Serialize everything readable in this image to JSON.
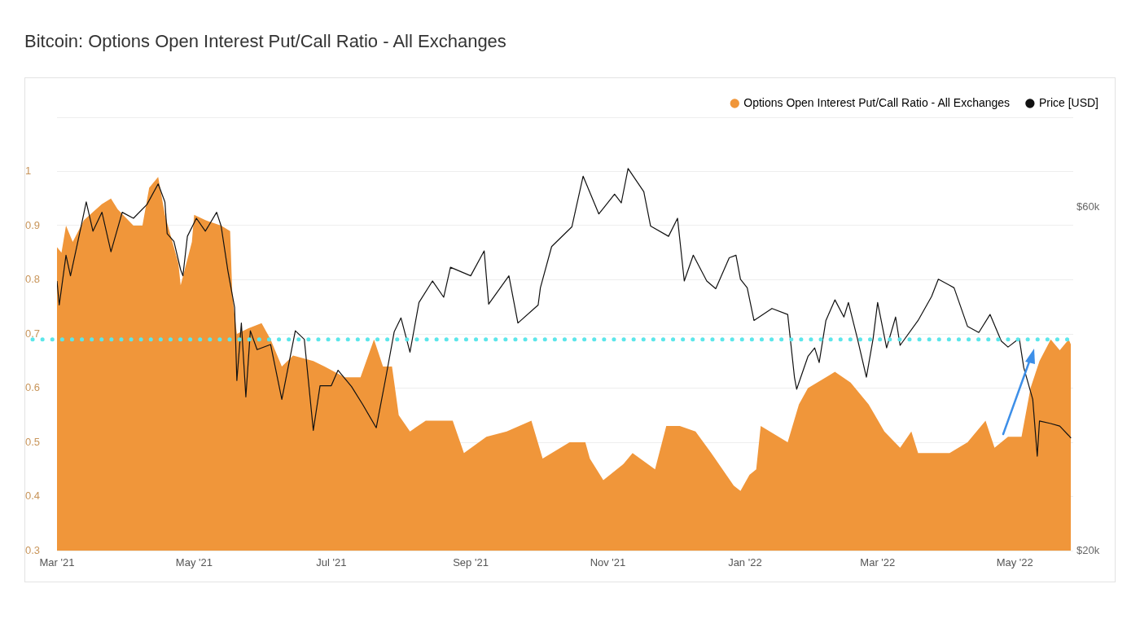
{
  "chart_data": {
    "type": "area",
    "title": "Bitcoin: Options Open Interest Put/Call Ratio - All Exchanges",
    "xlim": [
      "2021-03-01",
      "2022-05-27"
    ],
    "xticks": [
      {
        "value": "2021-03-01",
        "label": "Mar '21"
      },
      {
        "value": "2021-05-01",
        "label": "May '21"
      },
      {
        "value": "2021-07-01",
        "label": "Jul '21"
      },
      {
        "value": "2021-09-01",
        "label": "Sep '21"
      },
      {
        "value": "2021-11-01",
        "label": "Nov '21"
      },
      {
        "value": "2022-01-01",
        "label": "Jan '22"
      },
      {
        "value": "2022-03-01",
        "label": "Mar '22"
      },
      {
        "value": "2022-05-01",
        "label": "May '22"
      }
    ],
    "ylim": [
      0.3,
      1.1
    ],
    "yticks": [
      0.3,
      0.4,
      0.5,
      0.6,
      0.7,
      0.8,
      0.9,
      1,
      {
        "value": 1.1,
        "label": null
      }
    ],
    "y2lim": [
      20000,
      70460
    ],
    "y2ticks": [
      {
        "value": 20000,
        "label": "$20k"
      },
      {
        "value": 60000,
        "label": "$60k"
      }
    ],
    "grid": "y",
    "legend": "top right",
    "ref_lines": [
      {
        "axis": "y",
        "value": 0.69,
        "color": "#5ce6ea",
        "line_style": "dotted"
      }
    ],
    "series": [
      {
        "name": "Options Open Interest Put/Call Ratio - All Exchanges",
        "type": "area",
        "color": "#f0963a",
        "x": [
          "2021-03-01",
          "2021-03-03",
          "2021-03-05",
          "2021-03-08",
          "2021-03-13",
          "2021-03-21",
          "2021-03-25",
          "2021-03-28",
          "2021-04-04",
          "2021-04-08",
          "2021-04-11",
          "2021-04-15",
          "2021-04-18",
          "2021-04-20",
          "2021-04-24",
          "2021-04-25",
          "2021-04-30",
          "2021-05-01",
          "2021-05-06",
          "2021-05-13",
          "2021-05-17",
          "2021-05-18",
          "2021-05-20",
          "2021-05-25",
          "2021-05-31",
          "2021-06-04",
          "2021-06-09",
          "2021-06-14",
          "2021-06-23",
          "2021-06-28",
          "2021-07-07",
          "2021-07-14",
          "2021-07-20",
          "2021-07-24",
          "2021-07-28",
          "2021-07-29",
          "2021-07-31",
          "2021-08-05",
          "2021-08-12",
          "2021-08-24",
          "2021-08-29",
          "2021-09-08",
          "2021-09-17",
          "2021-09-28",
          "2021-10-03",
          "2021-10-15",
          "2021-10-22",
          "2021-10-24",
          "2021-10-30",
          "2021-11-08",
          "2021-11-12",
          "2021-11-22",
          "2021-11-27",
          "2021-12-03",
          "2021-12-10",
          "2021-12-17",
          "2021-12-27",
          "2021-12-30",
          "2022-01-03",
          "2022-01-06",
          "2022-01-08",
          "2022-01-20",
          "2022-01-25",
          "2022-01-29",
          "2022-02-06",
          "2022-02-10",
          "2022-02-17",
          "2022-02-25",
          "2022-03-04",
          "2022-03-11",
          "2022-03-16",
          "2022-03-19",
          "2022-04-02",
          "2022-04-10",
          "2022-04-18",
          "2022-04-22",
          "2022-04-28",
          "2022-05-04",
          "2022-05-08",
          "2022-05-12",
          "2022-05-17",
          "2022-05-21",
          "2022-05-25",
          "2022-05-26"
        ],
        "values": [
          0.86,
          0.85,
          0.9,
          0.87,
          0.91,
          0.94,
          0.95,
          0.93,
          0.9,
          0.9,
          0.97,
          0.99,
          0.92,
          0.89,
          0.83,
          0.79,
          0.87,
          0.92,
          0.91,
          0.9,
          0.89,
          0.77,
          0.7,
          0.71,
          0.72,
          0.69,
          0.64,
          0.66,
          0.65,
          0.64,
          0.62,
          0.62,
          0.69,
          0.64,
          0.64,
          0.61,
          0.55,
          0.52,
          0.54,
          0.54,
          0.48,
          0.51,
          0.52,
          0.54,
          0.47,
          0.5,
          0.5,
          0.47,
          0.43,
          0.46,
          0.48,
          0.45,
          0.53,
          0.53,
          0.52,
          0.48,
          0.42,
          0.41,
          0.44,
          0.45,
          0.53,
          0.5,
          0.57,
          0.6,
          0.62,
          0.63,
          0.61,
          0.57,
          0.52,
          0.49,
          0.52,
          0.48,
          0.48,
          0.5,
          0.54,
          0.49,
          0.51,
          0.51,
          0.6,
          0.65,
          0.69,
          0.67,
          0.69,
          0.68
        ]
      },
      {
        "name": "Price [USD]",
        "type": "line",
        "axis": "y2",
        "color": "#111111",
        "x": [
          "2021-03-01",
          "2021-03-02",
          "2021-03-05",
          "2021-03-07",
          "2021-03-12",
          "2021-03-14",
          "2021-03-17",
          "2021-03-21",
          "2021-03-25",
          "2021-03-30",
          "2021-04-04",
          "2021-04-10",
          "2021-04-15",
          "2021-04-18",
          "2021-04-19",
          "2021-04-22",
          "2021-04-25",
          "2021-04-26",
          "2021-04-28",
          "2021-05-02",
          "2021-05-06",
          "2021-05-11",
          "2021-05-13",
          "2021-05-16",
          "2021-05-19",
          "2021-05-20",
          "2021-05-22",
          "2021-05-24",
          "2021-05-26",
          "2021-05-29",
          "2021-06-04",
          "2021-06-09",
          "2021-06-15",
          "2021-06-19",
          "2021-06-23",
          "2021-06-26",
          "2021-07-01",
          "2021-07-04",
          "2021-07-10",
          "2021-07-15",
          "2021-07-21",
          "2021-07-25",
          "2021-07-29",
          "2021-08-01",
          "2021-08-05",
          "2021-08-09",
          "2021-08-15",
          "2021-08-20",
          "2021-08-23",
          "2021-09-01",
          "2021-09-07",
          "2021-09-09",
          "2021-09-18",
          "2021-09-22",
          "2021-10-01",
          "2021-10-02",
          "2021-10-07",
          "2021-10-16",
          "2021-10-21",
          "2021-10-28",
          "2021-11-04",
          "2021-11-07",
          "2021-11-10",
          "2021-11-17",
          "2021-11-20",
          "2021-11-28",
          "2021-12-02",
          "2021-12-05",
          "2021-12-09",
          "2021-12-15",
          "2021-12-19",
          "2021-12-25",
          "2021-12-28",
          "2021-12-30",
          "2022-01-02",
          "2022-01-05",
          "2022-01-13",
          "2022-01-20",
          "2022-01-23",
          "2022-01-24",
          "2022-01-29",
          "2022-02-01",
          "2022-02-03",
          "2022-02-06",
          "2022-02-10",
          "2022-02-14",
          "2022-02-16",
          "2022-02-20",
          "2022-02-24",
          "2022-02-27",
          "2022-03-01",
          "2022-03-05",
          "2022-03-09",
          "2022-03-11",
          "2022-03-19",
          "2022-03-25",
          "2022-03-28",
          "2022-04-02",
          "2022-04-04",
          "2022-04-10",
          "2022-04-15",
          "2022-04-20",
          "2022-04-25",
          "2022-04-28",
          "2022-05-03",
          "2022-05-05",
          "2022-05-09",
          "2022-05-11",
          "2022-05-12",
          "2022-05-17",
          "2022-05-21",
          "2022-05-25",
          "2022-05-26"
        ],
        "values": [
          51400,
          48600,
          54400,
          52000,
          58100,
          60600,
          57200,
          59400,
          54800,
          59400,
          58700,
          60300,
          62700,
          60600,
          56900,
          56000,
          52700,
          52000,
          56600,
          58700,
          57200,
          59400,
          57800,
          52600,
          48300,
          39800,
          46500,
          37900,
          45600,
          43400,
          44000,
          37600,
          45600,
          44600,
          34000,
          39200,
          39200,
          41000,
          39100,
          37000,
          34300,
          39800,
          45500,
          47100,
          43100,
          48900,
          51400,
          49500,
          53000,
          52000,
          54900,
          48700,
          52000,
          46500,
          48600,
          50600,
          55400,
          57700,
          63600,
          59200,
          61500,
          60500,
          64500,
          61800,
          57800,
          56600,
          58700,
          51400,
          54400,
          51400,
          50500,
          54100,
          54400,
          51600,
          50600,
          46800,
          48200,
          47500,
          40200,
          38800,
          42600,
          43600,
          41900,
          46800,
          49200,
          47200,
          48900,
          44700,
          40200,
          44700,
          48900,
          43600,
          47200,
          43900,
          46800,
          49600,
          51600,
          50900,
          50600,
          46100,
          45400,
          47500,
          44400,
          43700,
          44700,
          41300,
          37600,
          31000,
          35100,
          34800,
          34500,
          33400,
          33100
        ]
      }
    ]
  }
}
